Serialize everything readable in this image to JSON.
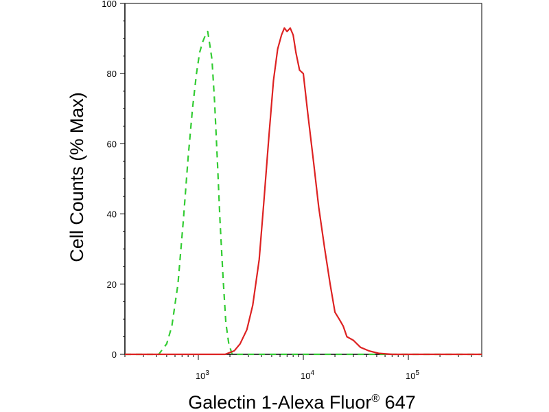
{
  "chart_data": {
    "type": "line",
    "title": "",
    "xlabel": "Galectin 1-Alexa Fluor® 647",
    "xlabel_main": "Galectin 1-Alexa Fluor",
    "xlabel_reg": "®",
    "xlabel_tail": " 647",
    "ylabel": "Cell Counts (% Max)",
    "x_scale": "log",
    "xlim": [
      200,
      500000
    ],
    "ylim": [
      0,
      100
    ],
    "grid": false,
    "legend": "none",
    "y_ticks": [
      {
        "value": 0,
        "label": "0"
      },
      {
        "value": 20,
        "label": "20"
      },
      {
        "value": 40,
        "label": "40"
      },
      {
        "value": 60,
        "label": "60"
      },
      {
        "value": 80,
        "label": "80"
      },
      {
        "value": 100,
        "label": "100"
      }
    ],
    "x_ticks": [
      {
        "value": 1000,
        "base": "10",
        "exp": "3"
      },
      {
        "value": 10000,
        "base": "10",
        "exp": "4"
      },
      {
        "value": 100000,
        "base": "10",
        "exp": "5"
      }
    ],
    "series": [
      {
        "color": "#33cc33",
        "dash": true,
        "points": [
          [
            200,
            0
          ],
          [
            420,
            0
          ],
          [
            500,
            3
          ],
          [
            560,
            8
          ],
          [
            640,
            20
          ],
          [
            720,
            38
          ],
          [
            800,
            56
          ],
          [
            880,
            70
          ],
          [
            960,
            80
          ],
          [
            1030,
            86
          ],
          [
            1100,
            89
          ],
          [
            1170,
            91
          ],
          [
            1230,
            92
          ],
          [
            1290,
            88
          ],
          [
            1350,
            84
          ],
          [
            1430,
            72
          ],
          [
            1520,
            55
          ],
          [
            1610,
            38
          ],
          [
            1720,
            22
          ],
          [
            1830,
            9
          ],
          [
            1950,
            3
          ],
          [
            2100,
            0
          ],
          [
            500000,
            0
          ]
        ]
      },
      {
        "color": "#dd2222",
        "dash": false,
        "points": [
          [
            200,
            0
          ],
          [
            1800,
            0
          ],
          [
            2200,
            1
          ],
          [
            2500,
            3
          ],
          [
            2900,
            7
          ],
          [
            3300,
            14
          ],
          [
            3800,
            27
          ],
          [
            4200,
            43
          ],
          [
            4700,
            62
          ],
          [
            5200,
            78
          ],
          [
            5700,
            87
          ],
          [
            6200,
            91
          ],
          [
            6600,
            93
          ],
          [
            7000,
            92
          ],
          [
            7500,
            93
          ],
          [
            8000,
            91
          ],
          [
            8500,
            86
          ],
          [
            9200,
            81
          ],
          [
            10000,
            80
          ],
          [
            11000,
            69
          ],
          [
            12500,
            55
          ],
          [
            14000,
            42
          ],
          [
            16000,
            30
          ],
          [
            18000,
            20
          ],
          [
            20000,
            12
          ],
          [
            22000,
            10
          ],
          [
            24000,
            8
          ],
          [
            26000,
            5
          ],
          [
            30000,
            4
          ],
          [
            35000,
            2
          ],
          [
            42000,
            1
          ],
          [
            52000,
            0.3
          ],
          [
            70000,
            0
          ],
          [
            500000,
            0
          ]
        ]
      }
    ]
  }
}
